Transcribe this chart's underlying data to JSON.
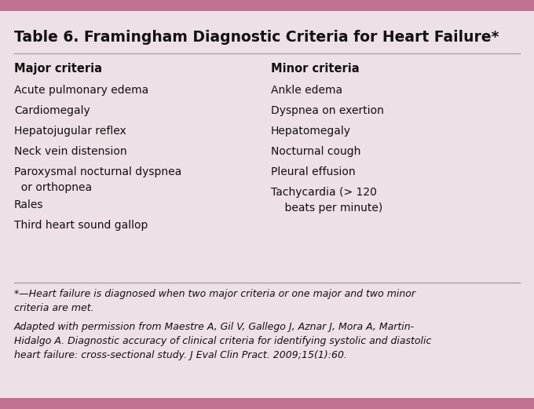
{
  "title": "Table 6. Framingham Diagnostic Criteria for Heart Failure*",
  "bg_color": "#ede0e6",
  "top_bar_color": "#c07090",
  "bottom_bar_color": "#c07090",
  "line_color": "#b0a0a8",
  "title_color": "#111111",
  "major_header": "Major criteria",
  "minor_header": "Minor criteria",
  "major_items": [
    "Acute pulmonary edema",
    "Cardiomegaly",
    "Hepatojugular reflex",
    "Neck vein distension",
    "Paroxysmal nocturnal dyspnea\n  or orthopnea",
    "Rales",
    "Third heart sound gallop"
  ],
  "minor_items": [
    "Ankle edema",
    "Dyspnea on exertion",
    "Hepatomegaly",
    "Nocturnal cough",
    "Pleural effusion",
    "Tachycardia (> 120\n    beats per minute)"
  ],
  "footnote1": "*—Heart failure is diagnosed when two major criteria or one major and two minor\ncriteria are met.",
  "footnote2": "Adapted with permission from Maestre A, Gil V, Gallego J, Aznar J, Mora A, Martin-\nHidalgo A. Diagnostic accuracy of clinical criteria for identifying systolic and diastolic\nheart failure: cross-sectional study. J Eval Clin Pract. 2009;15(1):60.",
  "text_color": "#111111",
  "footnote_color": "#111111"
}
